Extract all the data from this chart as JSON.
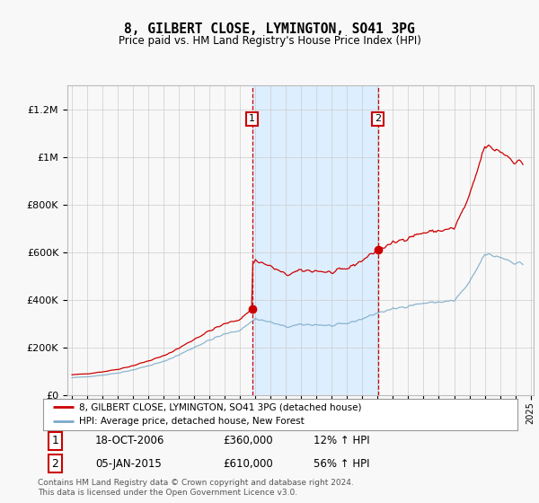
{
  "title": "8, GILBERT CLOSE, LYMINGTON, SO41 3PG",
  "subtitle": "Price paid vs. HM Land Registry's House Price Index (HPI)",
  "footer": "Contains HM Land Registry data © Crown copyright and database right 2024.\nThis data is licensed under the Open Government Licence v3.0.",
  "legend_line1": "8, GILBERT CLOSE, LYMINGTON, SO41 3PG (detached house)",
  "legend_line2": "HPI: Average price, detached house, New Forest",
  "transaction1_label": "18-OCT-2006",
  "transaction1_price": "£360,000",
  "transaction1_hpi": "12% ↑ HPI",
  "transaction2_label": "05-JAN-2015",
  "transaction2_price": "£610,000",
  "transaction2_hpi": "56% ↑ HPI",
  "sale1_date": 2006.79,
  "sale1_price": 360000,
  "sale2_date": 2015.02,
  "sale2_price": 610000,
  "red_color": "#cc0000",
  "blue_color": "#7aaac8",
  "shade_color": "#ddeeff",
  "background_color": "#f8f8f8",
  "grid_color": "#cccccc",
  "ylim": [
    0,
    1300000
  ],
  "xlim_start": 1994.7,
  "xlim_end": 2025.2
}
